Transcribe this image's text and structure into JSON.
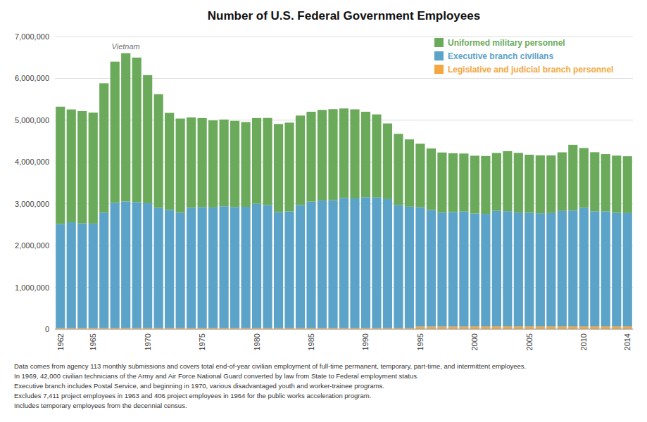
{
  "chart_data": {
    "type": "bar",
    "title": "Number of U.S. Federal Government Employees",
    "stacked": true,
    "grid": true,
    "legend": "upper right",
    "categories": [
      "1962",
      null,
      null,
      "1965",
      null,
      null,
      null,
      null,
      "1970",
      null,
      null,
      null,
      null,
      "1975",
      null,
      null,
      null,
      null,
      "1980",
      null,
      null,
      null,
      null,
      "1985",
      null,
      null,
      null,
      null,
      "1990",
      null,
      null,
      null,
      null,
      "1995",
      null,
      null,
      null,
      null,
      "2000",
      null,
      null,
      null,
      null,
      "2005",
      null,
      null,
      null,
      null,
      "2010",
      null,
      null,
      null,
      "2014"
    ],
    "series": [
      {
        "name": "Legislative and judicial branch personnel",
        "color": "#f4a741",
        "values": [
          30000,
          30000,
          30000,
          30000,
          30000,
          30000,
          30000,
          30000,
          30000,
          30000,
          30000,
          30000,
          30000,
          30000,
          30000,
          30000,
          30000,
          30000,
          30000,
          30000,
          30000,
          30000,
          30000,
          30000,
          30000,
          30000,
          30000,
          30000,
          30000,
          30000,
          30000,
          30000,
          30000,
          60000,
          60000,
          60000,
          60000,
          60000,
          64000,
          64000,
          64000,
          64000,
          64000,
          64000,
          64000,
          64000,
          64000,
          64000,
          64000,
          64000,
          64000,
          64000,
          64000
        ]
      },
      {
        "name": "Executive branch civilians",
        "color": "#5ba3c9",
        "values": [
          2485000,
          2527000,
          2500000,
          2496000,
          2759000,
          2993000,
          3026000,
          3008000,
          2983000,
          2874000,
          2823000,
          2757000,
          2874000,
          2890000,
          2883000,
          2911000,
          2893000,
          2897000,
          2970000,
          2940000,
          2770000,
          2788000,
          2942000,
          3021000,
          3047000,
          3059000,
          3112000,
          3099000,
          3128000,
          3121000,
          3084000,
          2938000,
          2900000,
          2858000,
          2790000,
          2728000,
          2741000,
          2756000,
          2702000,
          2694000,
          2767000,
          2760000,
          2726000,
          2721000,
          2710000,
          2714000,
          2765000,
          2776000,
          2840000,
          2756000,
          2756000,
          2719000,
          2714000
        ]
      },
      {
        "name": "Uniformed military personnel",
        "color": "#6aaa5a",
        "values": [
          2807000,
          2700000,
          2687000,
          2655000,
          3094000,
          3377000,
          3547000,
          3460000,
          3066000,
          2714000,
          2322000,
          2252000,
          2162000,
          2131000,
          2082000,
          2074000,
          2062000,
          2027000,
          2051000,
          2083000,
          2109000,
          2123000,
          2138000,
          2151000,
          2169000,
          2174000,
          2138000,
          2130000,
          2044000,
          1987000,
          1807000,
          1705000,
          1610000,
          1518000,
          1472000,
          1439000,
          1407000,
          1386000,
          1384000,
          1385000,
          1385000,
          1434000,
          1427000,
          1389000,
          1384000,
          1379000,
          1402000,
          1571000,
          1430000,
          1414000,
          1369000,
          1369000,
          1359000
        ]
      }
    ],
    "ylim": [
      0,
      7000000
    ],
    "yticks": [
      0,
      {
        "value": 1000000,
        "label": "1,000,000"
      },
      {
        "value": 2000000,
        "label": "2,000,000"
      },
      {
        "value": 3000000,
        "label": "3,000,000"
      },
      {
        "value": 4000000,
        "label": "4,000,000"
      },
      {
        "value": 5000000,
        "label": "5,000,000"
      },
      {
        "value": 6000000,
        "label": "6,000,000"
      },
      {
        "value": 7000000,
        "label": "7,000,000"
      }
    ],
    "annotations": [
      {
        "text": "Vietnam"
      }
    ],
    "footnotes": [
      "Data comes from agency 113 monthly submissions and covers total end-of-year civilian employment of full-time permanent, temporary, part-time, and intermittent employees.",
      "In 1969, 42,000 civilian technicians of the Army and Air Force National Guard converted by law from State to Federal employment status.",
      "Executive branch includes Postal Service, and beginning in 1970, various disadvantaged youth and worker-trainee programs.",
      "Excludes 7,411 project employees in 1963 and 406 project employees in 1964 for the public works acceleration program.",
      "Includes temporary employees from the decennial census."
    ]
  }
}
